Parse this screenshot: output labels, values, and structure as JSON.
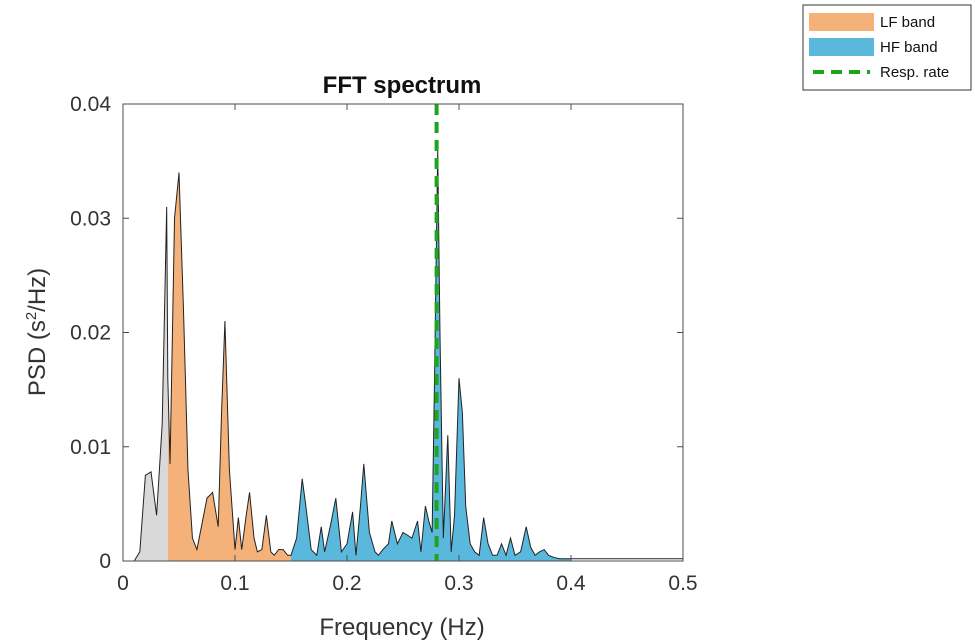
{
  "chart_data": {
    "type": "area",
    "title": "FFT spectrum",
    "xlabel": "Frequency (Hz)",
    "ylabel_prefix": "PSD (s",
    "ylabel_sup": "2",
    "ylabel_suffix": "/Hz)",
    "xlim": [
      0,
      0.5
    ],
    "ylim": [
      0,
      0.04
    ],
    "x_ticks": [
      0,
      0.1,
      0.2,
      0.3,
      0.4,
      0.5
    ],
    "x_tick_labels": [
      "0",
      "0.1",
      "0.2",
      "0.3",
      "0.4",
      "0.5"
    ],
    "y_ticks": [
      0,
      0.01,
      0.02,
      0.03,
      0.04
    ],
    "y_tick_labels": [
      "0",
      "0.01",
      "0.02",
      "0.03",
      "0.04"
    ],
    "grid": false,
    "legend_position": "top-right",
    "colors": {
      "vlf": "#d9d9d9",
      "lf": "#f4b27a",
      "hf": "#5ab8dd",
      "resp": "#1ea51e",
      "outline": "#222222"
    },
    "bands": [
      {
        "key": "vlf",
        "x_range": [
          0,
          0.04
        ]
      },
      {
        "key": "lf",
        "x_range": [
          0.04,
          0.15
        ]
      },
      {
        "key": "hf",
        "x_range": [
          0.15,
          0.4
        ]
      }
    ],
    "legend": [
      {
        "key": "lf",
        "label": "LF band",
        "kind": "patch"
      },
      {
        "key": "hf",
        "label": "HF band",
        "kind": "patch"
      },
      {
        "key": "resp",
        "label": "Resp. rate",
        "kind": "dashed-line"
      }
    ],
    "resp_rate": 0.28,
    "spectrum": {
      "x": [
        0,
        0.01,
        0.015,
        0.02,
        0.025,
        0.03,
        0.035,
        0.039,
        0.04,
        0.042,
        0.046,
        0.05,
        0.054,
        0.058,
        0.062,
        0.066,
        0.07,
        0.075,
        0.08,
        0.085,
        0.088,
        0.091,
        0.095,
        0.1,
        0.103,
        0.106,
        0.11,
        0.113,
        0.117,
        0.12,
        0.124,
        0.128,
        0.132,
        0.135,
        0.139,
        0.143,
        0.147,
        0.15,
        0.155,
        0.16,
        0.163,
        0.168,
        0.173,
        0.177,
        0.18,
        0.185,
        0.19,
        0.195,
        0.2,
        0.205,
        0.208,
        0.212,
        0.215,
        0.22,
        0.225,
        0.228,
        0.232,
        0.237,
        0.24,
        0.245,
        0.25,
        0.255,
        0.258,
        0.263,
        0.266,
        0.27,
        0.273,
        0.276,
        0.278,
        0.281,
        0.283,
        0.286,
        0.29,
        0.293,
        0.296,
        0.3,
        0.303,
        0.306,
        0.31,
        0.314,
        0.318,
        0.322,
        0.326,
        0.33,
        0.334,
        0.338,
        0.342,
        0.346,
        0.35,
        0.355,
        0.36,
        0.364,
        0.368,
        0.372,
        0.376,
        0.38,
        0.385,
        0.39,
        0.4,
        0.41,
        0.42,
        0.43,
        0.44,
        0.45,
        0.46,
        0.47,
        0.48,
        0.49,
        0.5
      ],
      "y": [
        0,
        0,
        0.0008,
        0.0075,
        0.0078,
        0.004,
        0.012,
        0.031,
        0.016,
        0.0085,
        0.03,
        0.034,
        0.022,
        0.008,
        0.002,
        0.001,
        0.003,
        0.0055,
        0.006,
        0.003,
        0.013,
        0.021,
        0.008,
        0.001,
        0.0038,
        0.001,
        0.004,
        0.006,
        0.002,
        0.0008,
        0.001,
        0.004,
        0.0008,
        0.0005,
        0.001,
        0.001,
        0.0005,
        0.0005,
        0.002,
        0.0072,
        0.005,
        0.001,
        0.0005,
        0.003,
        0.0008,
        0.003,
        0.0055,
        0.0008,
        0.0015,
        0.0043,
        0.0005,
        0.0048,
        0.0085,
        0.0025,
        0.0008,
        0.0005,
        0.001,
        0.0015,
        0.0035,
        0.0015,
        0.0025,
        0.0022,
        0.002,
        0.0035,
        0.0008,
        0.0048,
        0.0035,
        0.0025,
        0.015,
        0.036,
        0.02,
        0.002,
        0.011,
        0.0008,
        0.004,
        0.016,
        0.013,
        0.0048,
        0.0015,
        0.0008,
        0.0005,
        0.0038,
        0.0015,
        0.0005,
        0.0005,
        0.0015,
        0.0005,
        0.002,
        0.0005,
        0.0008,
        0.003,
        0.0012,
        0.0005,
        0.0008,
        0.001,
        0.0005,
        0.0003,
        0.0002,
        0.0002,
        0.0002,
        0.0002,
        0.0002,
        0.0002,
        0.0002,
        0.0002,
        0.0002,
        0.0002,
        0.0002,
        0.0002
      ]
    }
  }
}
